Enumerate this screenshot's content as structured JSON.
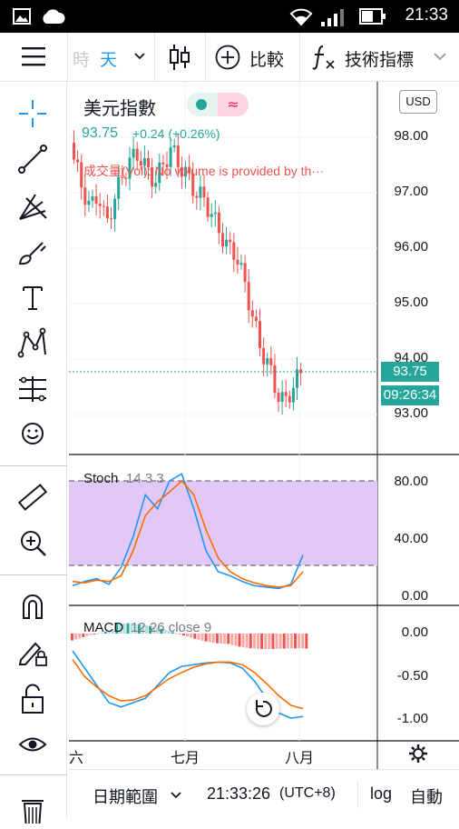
{
  "status_bar": {
    "time": "21:33"
  },
  "toolbar": {
    "interval_partial": "時",
    "interval": "天",
    "compare_label": "比較",
    "indicators_label": "技術指標"
  },
  "symbol": {
    "name": "美元指數",
    "price": "93.75",
    "change": "+0.24 (+0.26%)",
    "volume_note": "成交量(Vol): No volume is provided by th···",
    "currency": "USD",
    "price_tag": "93.75",
    "countdown_tag": "09:26:34"
  },
  "price_axis": [
    "98.00",
    "97.00",
    "96.00",
    "95.00",
    "94.00",
    "93.00"
  ],
  "stoch": {
    "label": "Stoch",
    "params": "14 3 3",
    "axis": [
      "80.00",
      "40.00",
      "0.00"
    ]
  },
  "macd": {
    "label": "MACD",
    "params": "12 26 close 9",
    "axis": [
      "0.00",
      "-0.50",
      "-1.00"
    ]
  },
  "time_axis": [
    "六月",
    "七月",
    "八月"
  ],
  "bottom_bar": {
    "date_range": "日期範圍",
    "clock": "21:33:26",
    "timezone": "(UTC+8)",
    "log": "log",
    "auto": "自動"
  },
  "colors": {
    "up": "#26a69a",
    "down": "#ef5350",
    "stoch_k": "#2196f3",
    "stoch_d": "#ff6d00",
    "stoch_band": "#e1c8f7",
    "accent": "#2196f3"
  },
  "chart_data": {
    "type": "line",
    "title": "美元指數",
    "ylim": [
      92.5,
      98.5
    ],
    "candles_close_approx": [
      97.6,
      97.1,
      96.7,
      97.0,
      96.4,
      96.9,
      97.3,
      97.6,
      97.7,
      97.4,
      97.2,
      97.5,
      97.8,
      97.5,
      97.3,
      97.0,
      96.9,
      96.6,
      96.3,
      96.0,
      95.9,
      95.4,
      94.8,
      94.2,
      93.9,
      93.4,
      93.2,
      93.5,
      93.75
    ],
    "stoch_k": [
      5,
      8,
      10,
      6,
      18,
      40,
      70,
      60,
      80,
      85,
      60,
      30,
      15,
      12,
      8,
      5,
      4,
      3,
      6,
      27
    ],
    "stoch_d": [
      8,
      7,
      9,
      8,
      12,
      30,
      55,
      65,
      72,
      80,
      70,
      45,
      25,
      15,
      10,
      7,
      5,
      4,
      5,
      15
    ]
  }
}
